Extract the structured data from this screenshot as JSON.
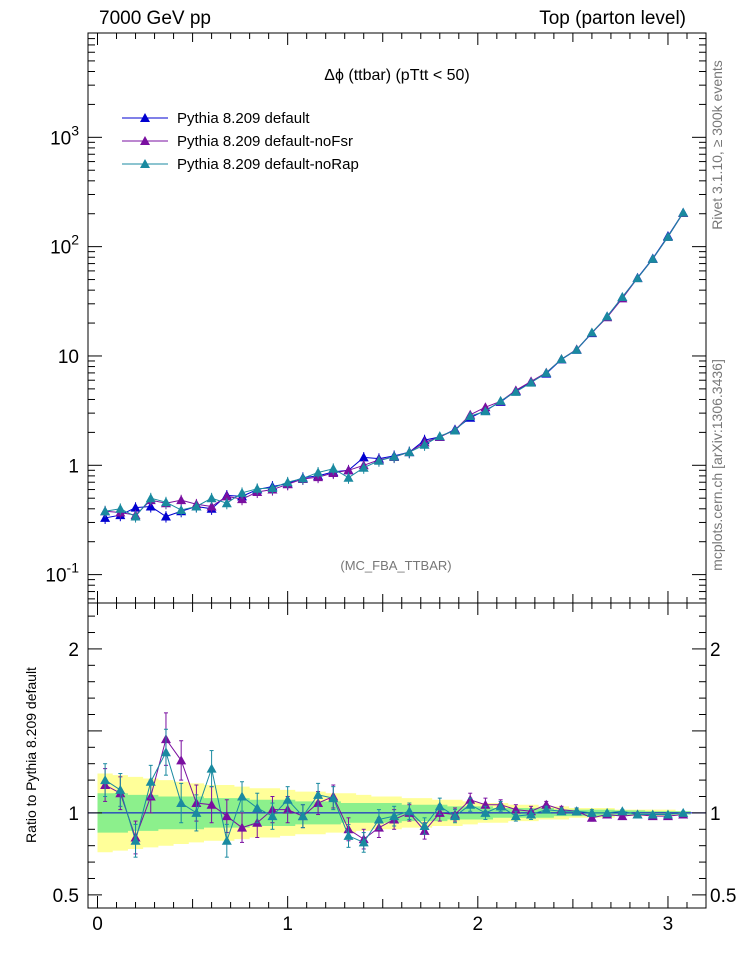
{
  "header": {
    "left": "7000 GeV pp",
    "right": "Top (parton level)"
  },
  "plot_title": "Δϕ (ttbar) (pTtt < 50)",
  "analysis_tag": "(MC_FBA_TTBAR)",
  "side_text": {
    "rivet": "Rivet 3.1.10, ≥ 300k events",
    "mcplots": "mcplots.cern.ch [arXiv:1306.3436]"
  },
  "ratio_ylabel": "Ratio to Pythia 8.209 default",
  "colors": {
    "default": "#0000d0",
    "noFsr": "#7a0fa0",
    "noRap": "#1a8aa0",
    "band_inner": "#8cf08c",
    "band_outer": "#ffff99"
  },
  "chart_data": [
    {
      "type": "line",
      "panel": "main",
      "yscale": "log",
      "xlim": [
        -0.05,
        3.2
      ],
      "ylim": [
        0.055,
        9000
      ],
      "yticklabels": [
        "10^-1",
        "1",
        "10",
        "10^2",
        "10^3"
      ],
      "x": [
        0.04,
        0.12,
        0.2,
        0.28,
        0.36,
        0.44,
        0.52,
        0.6,
        0.68,
        0.76,
        0.84,
        0.92,
        1.0,
        1.08,
        1.16,
        1.24,
        1.32,
        1.4,
        1.48,
        1.56,
        1.64,
        1.72,
        1.8,
        1.88,
        1.96,
        2.04,
        2.12,
        2.2,
        2.28,
        2.36,
        2.44,
        2.52,
        2.6,
        2.68,
        2.76,
        2.84,
        2.92,
        3.0,
        3.08
      ],
      "series": [
        {
          "name": "Pythia 8.209 default",
          "key": "default",
          "values": [
            0.33,
            0.35,
            0.41,
            0.42,
            0.34,
            0.38,
            0.42,
            0.4,
            0.53,
            0.52,
            0.6,
            0.64,
            0.68,
            0.77,
            0.8,
            0.87,
            0.9,
            1.18,
            1.15,
            1.22,
            1.32,
            1.7,
            1.82,
            2.13,
            2.72,
            3.18,
            3.8,
            4.78,
            5.8,
            6.9,
            9.3,
            11.4,
            16.2,
            23.0,
            34.5,
            52.0,
            78.0,
            125,
            205
          ]
        },
        {
          "name": "Pythia 8.209 default-noFsr",
          "key": "noFsr",
          "values": [
            0.38,
            0.37,
            0.35,
            0.48,
            0.45,
            0.48,
            0.44,
            0.42,
            0.52,
            0.49,
            0.57,
            0.6,
            0.67,
            0.75,
            0.78,
            0.85,
            0.9,
            1.0,
            1.12,
            1.19,
            1.32,
            1.62,
            1.82,
            2.1,
            2.9,
            3.4,
            3.85,
            4.85,
            5.85,
            7.05,
            9.35,
            11.5,
            16.3,
            22.6,
            33.6,
            51.5,
            77.0,
            123,
            203
          ]
        },
        {
          "name": "Pythia 8.209 default-noRap",
          "key": "noRap",
          "values": [
            0.38,
            0.4,
            0.34,
            0.5,
            0.46,
            0.39,
            0.42,
            0.5,
            0.45,
            0.56,
            0.61,
            0.62,
            0.7,
            0.76,
            0.86,
            0.93,
            0.77,
            0.95,
            1.1,
            1.2,
            1.32,
            1.54,
            1.85,
            2.08,
            2.82,
            3.12,
            3.88,
            4.7,
            5.7,
            7.0,
            9.35,
            11.4,
            16.4,
            23.0,
            34.6,
            51.5,
            77.3,
            123,
            205
          ]
        }
      ]
    },
    {
      "type": "line",
      "panel": "ratio",
      "ylabel": "Ratio to Pythia 8.209 default",
      "xlim": [
        -0.05,
        3.2
      ],
      "ylim": [
        0.42,
        2.28
      ],
      "yticks": [
        0.5,
        1,
        2
      ],
      "yticklabels": [
        "0.5",
        "1",
        "2"
      ],
      "xticks": [
        0,
        1,
        2,
        3
      ],
      "xticklabels": [
        "0",
        "1",
        "2",
        "3"
      ],
      "x": [
        0.04,
        0.12,
        0.2,
        0.28,
        0.36,
        0.44,
        0.52,
        0.6,
        0.68,
        0.76,
        0.84,
        0.92,
        1.0,
        1.08,
        1.16,
        1.24,
        1.32,
        1.4,
        1.48,
        1.56,
        1.64,
        1.72,
        1.8,
        1.88,
        1.96,
        2.04,
        2.12,
        2.2,
        2.28,
        2.36,
        2.44,
        2.52,
        2.6,
        2.68,
        2.76,
        2.84,
        2.92,
        3.0,
        3.08
      ],
      "series": [
        {
          "name": "Pythia 8.209 default-noFsr",
          "key": "noFsr",
          "values": [
            1.17,
            1.12,
            0.85,
            1.1,
            1.45,
            1.32,
            1.06,
            1.05,
            0.98,
            0.91,
            0.94,
            1.02,
            1.02,
            0.98,
            1.06,
            1.1,
            0.9,
            0.84,
            0.91,
            0.96,
            1.0,
            0.89,
            1.0,
            0.99,
            1.08,
            1.05,
            1.05,
            1.02,
            1.01,
            1.05,
            1.02,
            1.01,
            0.97,
            0.99,
            0.98,
            0.99,
            0.98,
            0.98,
            0.99
          ],
          "errors": [
            0.1,
            0.1,
            0.1,
            0.1,
            0.16,
            0.12,
            0.11,
            0.11,
            0.1,
            0.09,
            0.09,
            0.08,
            0.08,
            0.07,
            0.07,
            0.07,
            0.07,
            0.06,
            0.06,
            0.06,
            0.05,
            0.05,
            0.05,
            0.04,
            0.04,
            0.04,
            0.03,
            0.03,
            0.03,
            0.02,
            0.02,
            0.02,
            0.02,
            0.01,
            0.01,
            0.01,
            0.01,
            0.01,
            0.01
          ]
        },
        {
          "name": "Pythia 8.209 default-noRap",
          "key": "noRap",
          "values": [
            1.2,
            1.14,
            0.83,
            1.19,
            1.37,
            1.06,
            1.0,
            1.27,
            0.83,
            1.1,
            1.03,
            0.98,
            1.08,
            0.98,
            1.11,
            1.09,
            0.86,
            0.82,
            0.96,
            0.98,
            1.01,
            0.92,
            1.04,
            0.98,
            1.05,
            1.0,
            1.04,
            0.98,
            0.99,
            1.02,
            1.01,
            1.01,
            1.0,
            1.0,
            1.01,
            0.99,
            0.99,
            0.99,
            1.0
          ],
          "errors": [
            0.1,
            0.1,
            0.1,
            0.1,
            0.14,
            0.12,
            0.11,
            0.11,
            0.1,
            0.09,
            0.09,
            0.08,
            0.08,
            0.07,
            0.07,
            0.07,
            0.07,
            0.06,
            0.06,
            0.06,
            0.05,
            0.05,
            0.05,
            0.04,
            0.04,
            0.04,
            0.03,
            0.03,
            0.03,
            0.02,
            0.02,
            0.02,
            0.02,
            0.01,
            0.01,
            0.01,
            0.01,
            0.01,
            0.01
          ]
        }
      ],
      "band_inner_halfwidth": [
        0.12,
        0.12,
        0.11,
        0.11,
        0.1,
        0.1,
        0.1,
        0.09,
        0.09,
        0.09,
        0.08,
        0.08,
        0.08,
        0.07,
        0.07,
        0.07,
        0.06,
        0.06,
        0.06,
        0.06,
        0.05,
        0.05,
        0.05,
        0.04,
        0.04,
        0.04,
        0.03,
        0.03,
        0.03,
        0.03,
        0.02,
        0.02,
        0.02,
        0.02,
        0.015,
        0.015,
        0.01,
        0.01,
        0.01
      ],
      "band_outer_halfwidth": [
        0.24,
        0.23,
        0.22,
        0.21,
        0.2,
        0.19,
        0.18,
        0.17,
        0.17,
        0.16,
        0.15,
        0.15,
        0.14,
        0.13,
        0.13,
        0.12,
        0.12,
        0.11,
        0.1,
        0.1,
        0.09,
        0.09,
        0.08,
        0.08,
        0.07,
        0.06,
        0.06,
        0.05,
        0.05,
        0.04,
        0.04,
        0.03,
        0.03,
        0.03,
        0.02,
        0.02,
        0.02,
        0.02,
        0.01
      ]
    }
  ]
}
